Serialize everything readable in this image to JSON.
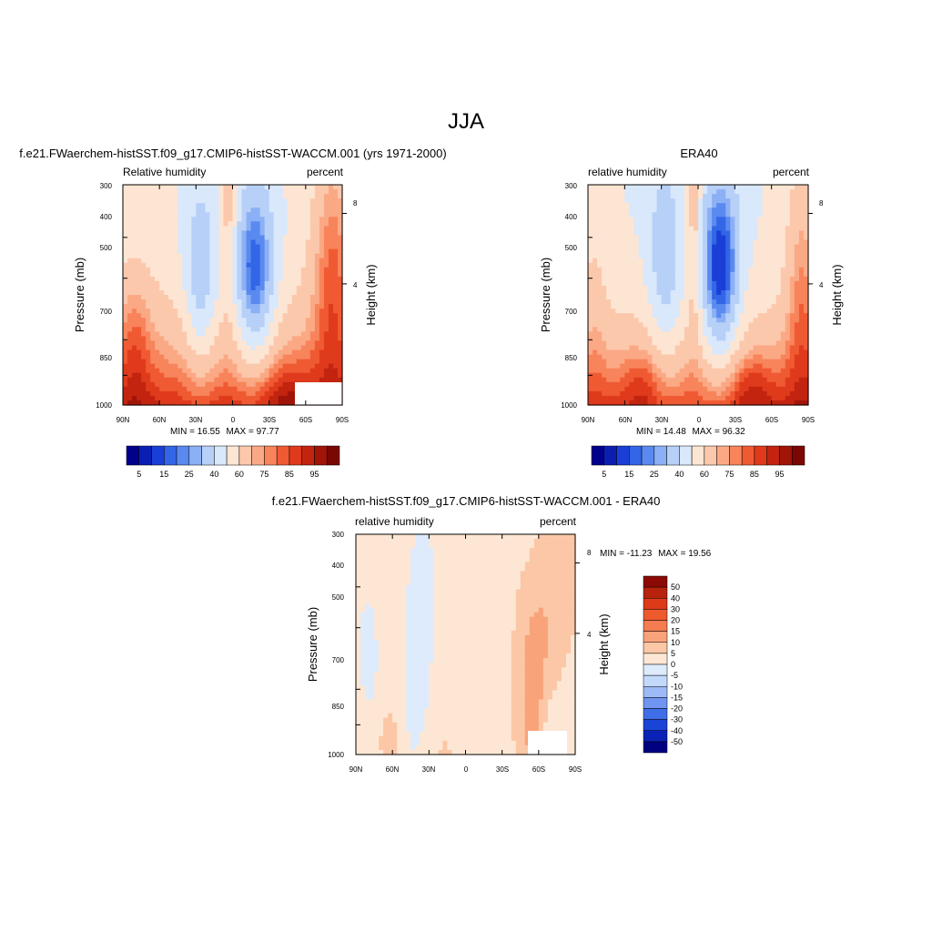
{
  "figure": {
    "title": "JJA"
  },
  "colormaps": {
    "abs": [
      "#00008b",
      "#0a1fb2",
      "#1a3fd6",
      "#3366e6",
      "#5a8af0",
      "#8bb0f5",
      "#b7d0f8",
      "#d9e8fb",
      "#fde5d3",
      "#fcc8ac",
      "#fba985",
      "#f8845b",
      "#f05a33",
      "#df3a1c",
      "#c22410",
      "#a01508",
      "#7a0704"
    ],
    "diff": [
      "#000080",
      "#0a22b5",
      "#1a44d8",
      "#3f6ee8",
      "#6f95f0",
      "#9dbaf6",
      "#c4d9fa",
      "#deebfc",
      "#fde7d4",
      "#fbc7a6",
      "#f9a37a",
      "#f47c50",
      "#ee5a2e",
      "#dc3a18",
      "#b7220c",
      "#8b0a04"
    ]
  },
  "chart_data": [
    {
      "type": "contour",
      "panel": "model",
      "title": "f.e21.FWaerchem-histSST.f09_g17.CMIP6-histSST-WACCM.001 (yrs 1971-2000)",
      "left_label": "Relative humidity",
      "right_label": "percent",
      "ylabel": "Pressure (mb)",
      "ylabel_right": "Height (km)",
      "x_ticks": [
        "90N",
        "60N",
        "30N",
        "0",
        "30S",
        "60S",
        "90S"
      ],
      "y_ticks": [
        "300",
        "400",
        "500",
        "700",
        "850",
        "1000"
      ],
      "height_ticks": [
        "8",
        "4"
      ],
      "min_label": "MIN =",
      "min": "16.55",
      "max_label": "MAX =",
      "max": "97.77",
      "colorbar_levels": [
        "5",
        "15",
        "25",
        "40",
        "60",
        "75",
        "85",
        "95"
      ],
      "ylim": [
        1000,
        300
      ],
      "xlim": [
        90,
        -90
      ]
    },
    {
      "type": "contour",
      "panel": "obs",
      "title": "ERA40",
      "left_label": "relative humidity",
      "right_label": "percent",
      "ylabel": "Pressure (mb)",
      "ylabel_right": "Height (km)",
      "x_ticks": [
        "90N",
        "60N",
        "30N",
        "0",
        "30S",
        "60S",
        "90S"
      ],
      "y_ticks": [
        "300",
        "400",
        "500",
        "700",
        "850",
        "1000"
      ],
      "height_ticks": [
        "8",
        "4"
      ],
      "min_label": "MIN =",
      "min": "14.48",
      "max_label": "MAX =",
      "max": "96.32",
      "colorbar_levels": [
        "5",
        "15",
        "25",
        "40",
        "60",
        "75",
        "85",
        "95"
      ],
      "ylim": [
        1000,
        300
      ],
      "xlim": [
        90,
        -90
      ]
    },
    {
      "type": "contour",
      "panel": "difference",
      "title": "f.e21.FWaerchem-histSST.f09_g17.CMIP6-histSST-WACCM.001 - ERA40",
      "left_label": "relative humidity",
      "right_label": "percent",
      "ylabel": "Pressure (mb)",
      "ylabel_right": "Height (km)",
      "x_ticks": [
        "90N",
        "60N",
        "30N",
        "0",
        "30S",
        "60S",
        "90S"
      ],
      "y_ticks": [
        "300",
        "400",
        "500",
        "700",
        "850",
        "1000"
      ],
      "height_ticks": [
        "8",
        "4"
      ],
      "min_label": "MIN =",
      "min": "-11.23",
      "max_label": "MAX =",
      "max": "19.56",
      "colorbar_levels": [
        "50",
        "40",
        "30",
        "20",
        "15",
        "10",
        "5",
        "0",
        "-5",
        "-10",
        "-15",
        "-20",
        "-30",
        "-40",
        "-50"
      ],
      "ylim": [
        1000,
        300
      ],
      "xlim": [
        90,
        -90
      ]
    }
  ]
}
